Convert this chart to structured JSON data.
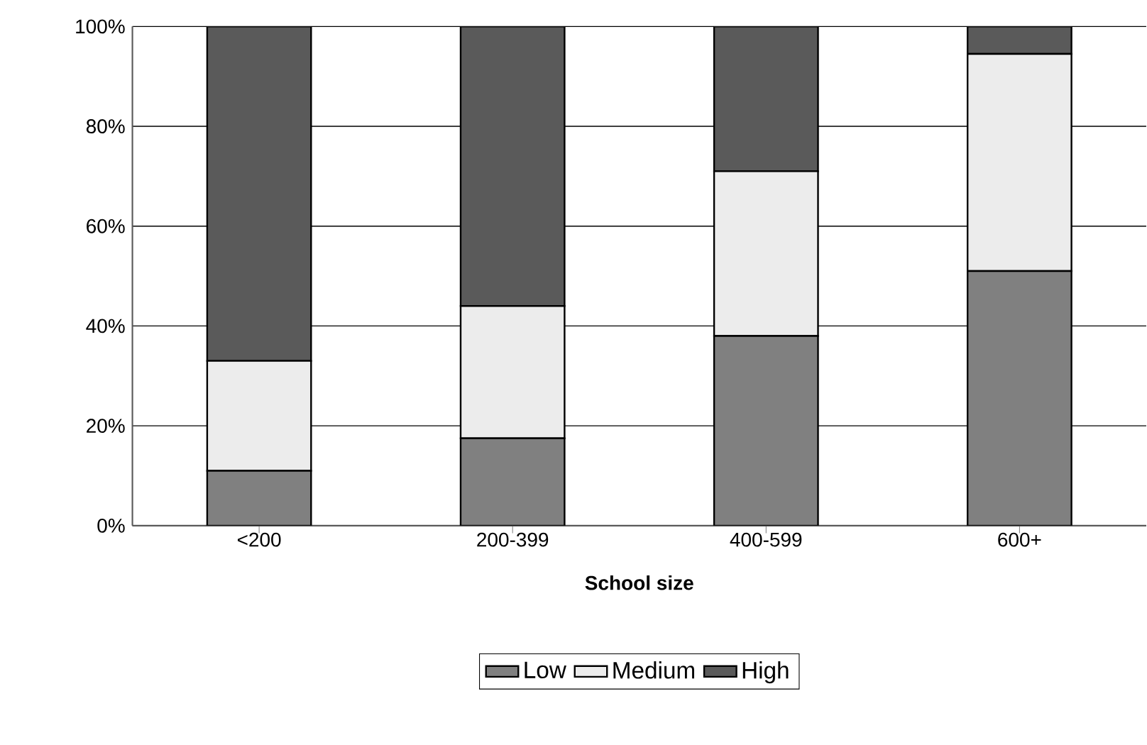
{
  "chart_data": {
    "type": "bar",
    "stacked": true,
    "xlabel": "School size",
    "categories": [
      "<200",
      "200-399",
      "400-599",
      "600+"
    ],
    "series": [
      {
        "name": "Low",
        "color": "#808080",
        "values": [
          11,
          17.5,
          38,
          51
        ]
      },
      {
        "name": "Medium",
        "color": "#ececec",
        "values": [
          22,
          26.5,
          33,
          43.5
        ]
      },
      {
        "name": "High",
        "color": "#5a5a5a",
        "values": [
          67,
          56,
          29,
          5.5
        ]
      }
    ],
    "ylim": [
      0,
      100
    ],
    "yticks": [
      {
        "value": 0,
        "label": "0%"
      },
      {
        "value": 20,
        "label": "20%"
      },
      {
        "value": 40,
        "label": "40%"
      },
      {
        "value": 60,
        "label": "60%"
      },
      {
        "value": 80,
        "label": "80%"
      },
      {
        "value": 100,
        "label": "100%"
      }
    ],
    "grid": "y",
    "legend": "bottom"
  }
}
